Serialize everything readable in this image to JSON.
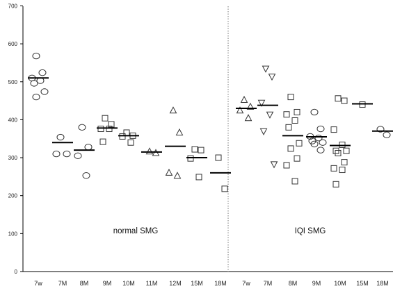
{
  "chart_data": {
    "type": "scatter",
    "title": "",
    "xlabel": "",
    "ylabel": "",
    "ylim": [
      0,
      700
    ],
    "yticks": [
      0,
      100,
      200,
      300,
      400,
      500,
      600,
      700
    ],
    "grid": false,
    "divider_between": [
      "18M",
      "7w"
    ],
    "categories": [
      "7w",
      "7M",
      "8M",
      "9M",
      "10M",
      "11M",
      "12M",
      "15M",
      "18M",
      "7w",
      "7M",
      "8M",
      "9M",
      "10M",
      "15M",
      "18M"
    ],
    "group_labels": [
      {
        "text": "normal SMG",
        "from": 0,
        "to": 8
      },
      {
        "text": "IQI SMG",
        "from": 9,
        "to": 15
      }
    ],
    "groups": [
      {
        "category": "7w",
        "marker": "circle",
        "mean": 510,
        "values": [
          568,
          524,
          510,
          503,
          496,
          474,
          460
        ]
      },
      {
        "category": "7M",
        "marker": "circle",
        "mean": 340,
        "values": [
          354,
          310,
          310
        ]
      },
      {
        "category": "8M",
        "marker": "circle",
        "mean": 320,
        "values": [
          380,
          328,
          305,
          253
        ]
      },
      {
        "category": "9M",
        "marker": "square",
        "mean": 378,
        "values": [
          404,
          388,
          376,
          376,
          342
        ]
      },
      {
        "category": "10M",
        "marker": "square",
        "mean": 358,
        "values": [
          366,
          358,
          356,
          340
        ]
      },
      {
        "category": "11M",
        "marker": "triangle-up",
        "mean": 315,
        "values": [
          316,
          312
        ]
      },
      {
        "category": "12M",
        "marker": "triangle-up",
        "mean": 330,
        "values": [
          424,
          366,
          260,
          252
        ]
      },
      {
        "category": "15M",
        "marker": "square",
        "mean": 300,
        "values": [
          322,
          320,
          298,
          249
        ]
      },
      {
        "category": "18M",
        "marker": "square",
        "mean": 260,
        "values": [
          300,
          218
        ]
      },
      {
        "category": "7w",
        "marker": "triangle-up",
        "mean": 430,
        "values": [
          452,
          434,
          424,
          404
        ]
      },
      {
        "category": "7M",
        "marker": "triangle-down",
        "mean": 438,
        "values": [
          535,
          514,
          445,
          414,
          370,
          283
        ]
      },
      {
        "category": "8M",
        "marker": "square",
        "mean": 358,
        "values": [
          460,
          420,
          414,
          398,
          380,
          338,
          324,
          298,
          280,
          238
        ]
      },
      {
        "category": "9M",
        "marker": "circle",
        "mean": 355,
        "values": [
          420,
          376,
          356,
          352,
          344,
          340,
          336,
          320
        ]
      },
      {
        "category": "10M",
        "marker": "square",
        "mean": 332,
        "values": [
          456,
          450,
          374,
          334,
          318,
          318,
          312,
          288,
          272,
          268,
          230
        ]
      },
      {
        "category": "15M",
        "marker": "square",
        "mean": 442,
        "values": [
          440
        ]
      },
      {
        "category": "18M",
        "marker": "circle",
        "mean": 370,
        "values": [
          375,
          360
        ]
      }
    ]
  }
}
